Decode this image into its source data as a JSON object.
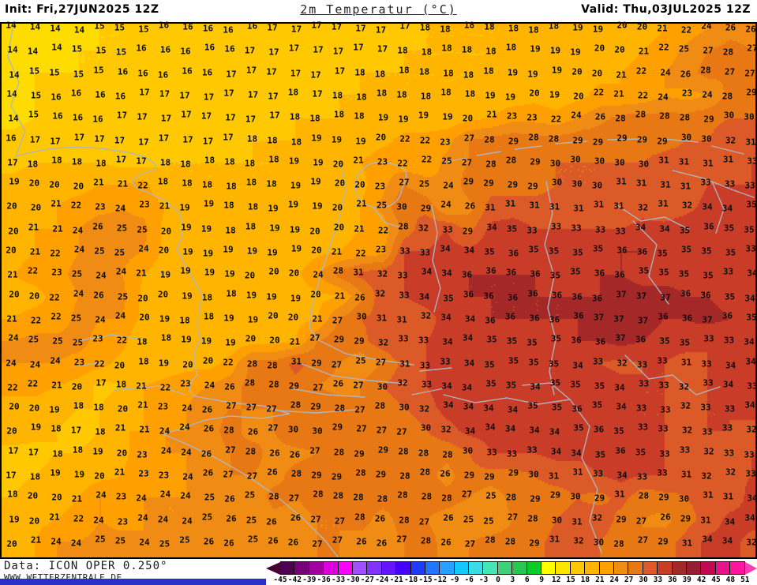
{
  "header": {
    "init": "Init: Fri,27JUN2025 12Z",
    "title": "2m Temperatur (°C)",
    "valid": "Valid: Thu,03JUL2025 12Z"
  },
  "footer": {
    "data_source": "Data: ICON OPER 0.250°",
    "website": "WWW.WETTERZENTRALE.DE"
  },
  "colorbar": {
    "tick_labels": [
      "-45",
      "-42",
      "-39",
      "-36",
      "-33",
      "-30",
      "-27",
      "-24",
      "-21",
      "-18",
      "-15",
      "-12",
      "-9",
      "-6",
      "-3",
      "0",
      "3",
      "6",
      "9",
      "12",
      "15",
      "18",
      "21",
      "24",
      "27",
      "30",
      "33",
      "36",
      "39",
      "42",
      "45",
      "48",
      "51"
    ],
    "box_colors": [
      "#500050",
      "#780078",
      "#A000A0",
      "#DC00DC",
      "#FF00FF",
      "#A050FF",
      "#8233FF",
      "#6414FF",
      "#4600FF",
      "#1E3CFF",
      "#1E78FF",
      "#28A0FF",
      "#14C8FF",
      "#3CDCE6",
      "#46E6B4",
      "#3CD278",
      "#28C850",
      "#0ACC28",
      "#FFFF00",
      "#FFE400",
      "#FFC800",
      "#FFB400",
      "#FFA000",
      "#F08C14",
      "#E87814",
      "#DC5A28",
      "#C83C28",
      "#A52828",
      "#961E32",
      "#BE0A50",
      "#E6148C",
      "#FF14A0"
    ],
    "arrow_left_color": "#460032",
    "arrow_right_color": "#FF3CB4"
  },
  "chart_data": {
    "type": "heatmap",
    "title": "2m Temperatur (°C)",
    "init": "Fri,27JUN2025 12Z",
    "valid": "Thu,03JUL2025 12Z",
    "model": "ICON OPER 0.250°",
    "unit": "°C",
    "scale_range": [
      -45,
      51
    ],
    "scale_step": 3,
    "cols": 35,
    "rows": 24,
    "bands": [
      {
        "max": 15,
        "color": "#FFDC00"
      },
      {
        "max": 18,
        "color": "#FFC800"
      },
      {
        "max": 21,
        "color": "#FFB400"
      },
      {
        "max": 24,
        "color": "#FFA000"
      },
      {
        "max": 27,
        "color": "#F08C14"
      },
      {
        "max": 30,
        "color": "#E87814"
      },
      {
        "max": 33,
        "color": "#DC5A28"
      },
      {
        "max": 36,
        "color": "#C83C28"
      },
      {
        "max": 99,
        "color": "#A52828"
      }
    ],
    "values": [
      [
        14,
        14,
        14,
        14,
        15,
        15,
        15,
        16,
        16,
        16,
        16,
        16,
        17,
        17,
        17,
        17,
        17,
        17,
        17,
        18,
        18,
        18,
        18,
        18,
        18,
        18,
        19,
        19,
        20,
        20,
        21,
        22,
        24,
        26,
        26
      ],
      [
        14,
        14,
        14,
        15,
        15,
        15,
        16,
        16,
        16,
        16,
        16,
        17,
        17,
        17,
        17,
        17,
        17,
        17,
        18,
        18,
        18,
        18,
        18,
        18,
        19,
        19,
        19,
        20,
        20,
        21,
        22,
        25,
        27,
        28,
        27
      ],
      [
        14,
        15,
        15,
        15,
        15,
        16,
        16,
        16,
        16,
        16,
        17,
        17,
        17,
        17,
        17,
        17,
        18,
        18,
        18,
        18,
        18,
        18,
        18,
        19,
        19,
        19,
        20,
        20,
        21,
        22,
        24,
        26,
        28,
        27,
        27
      ],
      [
        14,
        15,
        16,
        16,
        16,
        16,
        17,
        17,
        17,
        17,
        17,
        17,
        17,
        18,
        17,
        18,
        18,
        18,
        18,
        18,
        18,
        18,
        19,
        19,
        20,
        19,
        20,
        22,
        21,
        22,
        24,
        23,
        24,
        28,
        29
      ],
      [
        14,
        15,
        16,
        16,
        16,
        17,
        17,
        17,
        17,
        17,
        17,
        17,
        17,
        18,
        18,
        18,
        18,
        19,
        19,
        19,
        19,
        20,
        21,
        23,
        23,
        22,
        24,
        26,
        28,
        28,
        28,
        28,
        29,
        30,
        30
      ],
      [
        16,
        17,
        17,
        17,
        17,
        17,
        17,
        17,
        17,
        17,
        17,
        18,
        18,
        18,
        19,
        19,
        19,
        20,
        22,
        22,
        23,
        27,
        28,
        29,
        28,
        28,
        29,
        29,
        29,
        29,
        29,
        30,
        30,
        32,
        31
      ],
      [
        17,
        18,
        18,
        18,
        18,
        17,
        17,
        18,
        18,
        18,
        18,
        18,
        18,
        19,
        19,
        20,
        21,
        23,
        22,
        22,
        25,
        27,
        28,
        28,
        29,
        30,
        30,
        30,
        30,
        30,
        31,
        31,
        31,
        31,
        33
      ],
      [
        19,
        20,
        20,
        20,
        21,
        21,
        22,
        18,
        18,
        18,
        18,
        18,
        18,
        19,
        19,
        20,
        20,
        23,
        27,
        25,
        24,
        29,
        29,
        29,
        29,
        30,
        30,
        30,
        31,
        31,
        31,
        31,
        33,
        33,
        33
      ],
      [
        20,
        20,
        21,
        22,
        23,
        24,
        23,
        21,
        19,
        19,
        18,
        18,
        19,
        19,
        19,
        20,
        21,
        25,
        30,
        29,
        24,
        26,
        31,
        31,
        31,
        31,
        31,
        31,
        31,
        32,
        31,
        32,
        34,
        34,
        35
      ],
      [
        20,
        21,
        21,
        24,
        26,
        25,
        25,
        20,
        19,
        19,
        18,
        18,
        19,
        19,
        20,
        20,
        21,
        22,
        28,
        32,
        33,
        29,
        34,
        35,
        33,
        33,
        33,
        33,
        33,
        34,
        34,
        35,
        36,
        35,
        35
      ],
      [
        20,
        21,
        22,
        24,
        25,
        25,
        24,
        20,
        19,
        19,
        19,
        19,
        19,
        19,
        20,
        21,
        22,
        23,
        33,
        33,
        34,
        34,
        35,
        36,
        35,
        35,
        35,
        35,
        36,
        36,
        35,
        35,
        35,
        35,
        33
      ],
      [
        21,
        22,
        23,
        25,
        24,
        24,
        21,
        19,
        19,
        19,
        19,
        20,
        20,
        20,
        24,
        28,
        31,
        32,
        33,
        34,
        34,
        36,
        36,
        36,
        36,
        35,
        35,
        36,
        36,
        35,
        35,
        35,
        35,
        33,
        34
      ],
      [
        20,
        20,
        22,
        24,
        26,
        25,
        20,
        20,
        19,
        18,
        18,
        19,
        19,
        19,
        20,
        21,
        26,
        32,
        33,
        34,
        35,
        36,
        36,
        36,
        36,
        36,
        36,
        36,
        37,
        37,
        37,
        36,
        36,
        35,
        34
      ],
      [
        21,
        22,
        22,
        25,
        24,
        24,
        20,
        19,
        18,
        18,
        19,
        19,
        20,
        20,
        21,
        27,
        30,
        31,
        31,
        32,
        34,
        34,
        36,
        36,
        36,
        36,
        36,
        37,
        37,
        37,
        36,
        36,
        37,
        36,
        35
      ],
      [
        24,
        25,
        25,
        25,
        23,
        22,
        18,
        18,
        19,
        19,
        19,
        20,
        20,
        21,
        27,
        29,
        29,
        32,
        33,
        33,
        34,
        34,
        35,
        35,
        35,
        35,
        36,
        36,
        37,
        36,
        35,
        35,
        33,
        33,
        34
      ],
      [
        24,
        24,
        24,
        23,
        22,
        20,
        18,
        19,
        20,
        20,
        22,
        28,
        28,
        31,
        29,
        27,
        25,
        27,
        31,
        33,
        33,
        34,
        35,
        35,
        35,
        35,
        34,
        33,
        32,
        33,
        33,
        31,
        33,
        34,
        34
      ],
      [
        22,
        22,
        21,
        20,
        17,
        18,
        21,
        22,
        23,
        24,
        26,
        28,
        28,
        29,
        27,
        26,
        27,
        30,
        32,
        33,
        34,
        34,
        35,
        35,
        34,
        35,
        35,
        35,
        34,
        33,
        33,
        32,
        33,
        34,
        33
      ],
      [
        20,
        20,
        19,
        18,
        18,
        20,
        21,
        23,
        24,
        26,
        27,
        27,
        27,
        28,
        29,
        28,
        27,
        28,
        30,
        32,
        34,
        34,
        34,
        34,
        35,
        35,
        36,
        35,
        34,
        33,
        33,
        32,
        33,
        33,
        34
      ],
      [
        20,
        19,
        18,
        17,
        18,
        21,
        21,
        24,
        24,
        26,
        28,
        26,
        27,
        30,
        30,
        29,
        27,
        27,
        27,
        30,
        32,
        34,
        34,
        34,
        34,
        34,
        35,
        36,
        35,
        33,
        33,
        32,
        33,
        33,
        32
      ],
      [
        17,
        17,
        18,
        18,
        19,
        20,
        23,
        24,
        24,
        26,
        27,
        28,
        26,
        26,
        27,
        28,
        29,
        29,
        28,
        28,
        28,
        30,
        33,
        33,
        33,
        34,
        34,
        35,
        36,
        35,
        33,
        33,
        32,
        33,
        33
      ],
      [
        17,
        18,
        19,
        19,
        20,
        21,
        23,
        23,
        24,
        26,
        27,
        27,
        26,
        28,
        29,
        29,
        28,
        29,
        28,
        28,
        26,
        29,
        29,
        29,
        30,
        31,
        31,
        33,
        34,
        33,
        33,
        31,
        32,
        32,
        33
      ],
      [
        18,
        20,
        20,
        21,
        24,
        23,
        24,
        24,
        24,
        25,
        26,
        25,
        28,
        27,
        28,
        28,
        28,
        28,
        28,
        28,
        28,
        27,
        25,
        28,
        29,
        29,
        30,
        29,
        31,
        28,
        29,
        30,
        31,
        31,
        34
      ],
      [
        19,
        20,
        21,
        22,
        24,
        23,
        24,
        24,
        24,
        25,
        26,
        25,
        26,
        26,
        27,
        27,
        28,
        26,
        28,
        27,
        26,
        25,
        25,
        27,
        28,
        30,
        31,
        32,
        29,
        27,
        26,
        29,
        31,
        34,
        34
      ],
      [
        20,
        21,
        24,
        24,
        25,
        25,
        24,
        25,
        25,
        26,
        26,
        25,
        26,
        26,
        27,
        27,
        26,
        26,
        27,
        28,
        26,
        27,
        28,
        28,
        29,
        31,
        32,
        30,
        28,
        27,
        29,
        31,
        34,
        34,
        32
      ]
    ],
    "legend_position": "bottom",
    "grid_lines": false
  },
  "map": {
    "coast_color": "#AEB8C2",
    "border_color": "#000000",
    "bottom_bar_color": "#2830C8"
  }
}
